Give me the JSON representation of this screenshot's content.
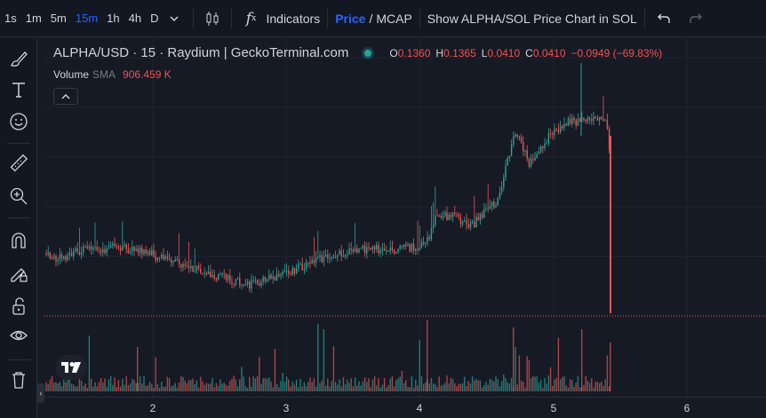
{
  "toolbar": {
    "timeframes": [
      {
        "label": "1s",
        "active": false
      },
      {
        "label": "1m",
        "active": false
      },
      {
        "label": "5m",
        "active": false
      },
      {
        "label": "15m",
        "active": true
      },
      {
        "label": "1h",
        "active": false
      },
      {
        "label": "4h",
        "active": false
      },
      {
        "label": "D",
        "active": false
      }
    ],
    "indicators_label": "Indicators",
    "price_label": "Price",
    "price_mcap_sep": "/",
    "mcap_label": "MCAP",
    "show_chart_label": "Show ALPHA/SOL Price Chart in SOL"
  },
  "legend": {
    "symbol": "ALPHA/USD · 15 · Raydium | GeckoTerminal.com",
    "o_label": "O",
    "o": "0.1360",
    "h_label": "H",
    "h": "0.1365",
    "l_label": "L",
    "l": "0.0410",
    "c_label": "C",
    "c": "0.0410",
    "change": "−0.0949 (−69.83%)"
  },
  "volume_legend": {
    "label": "Volume",
    "sma": "SMA",
    "value": "906.459 K"
  },
  "xaxis": {
    "ticks": [
      "2",
      "3",
      "4",
      "5",
      "6"
    ]
  },
  "colors": {
    "up": "#26a69a",
    "down": "#ef5350",
    "accent": "#2962ff",
    "background": "#161a25"
  },
  "icons": [
    "chevron-down-icon",
    "candles-icon",
    "function-icon",
    "undo-icon",
    "redo-icon",
    "brush-icon",
    "text-icon",
    "emoji-icon",
    "ruler-icon",
    "zoom-in-icon",
    "magnet-icon",
    "pencil-lock-icon",
    "lock-icon",
    "eye-icon",
    "trash-icon",
    "tradingview-logo-icon"
  ]
}
